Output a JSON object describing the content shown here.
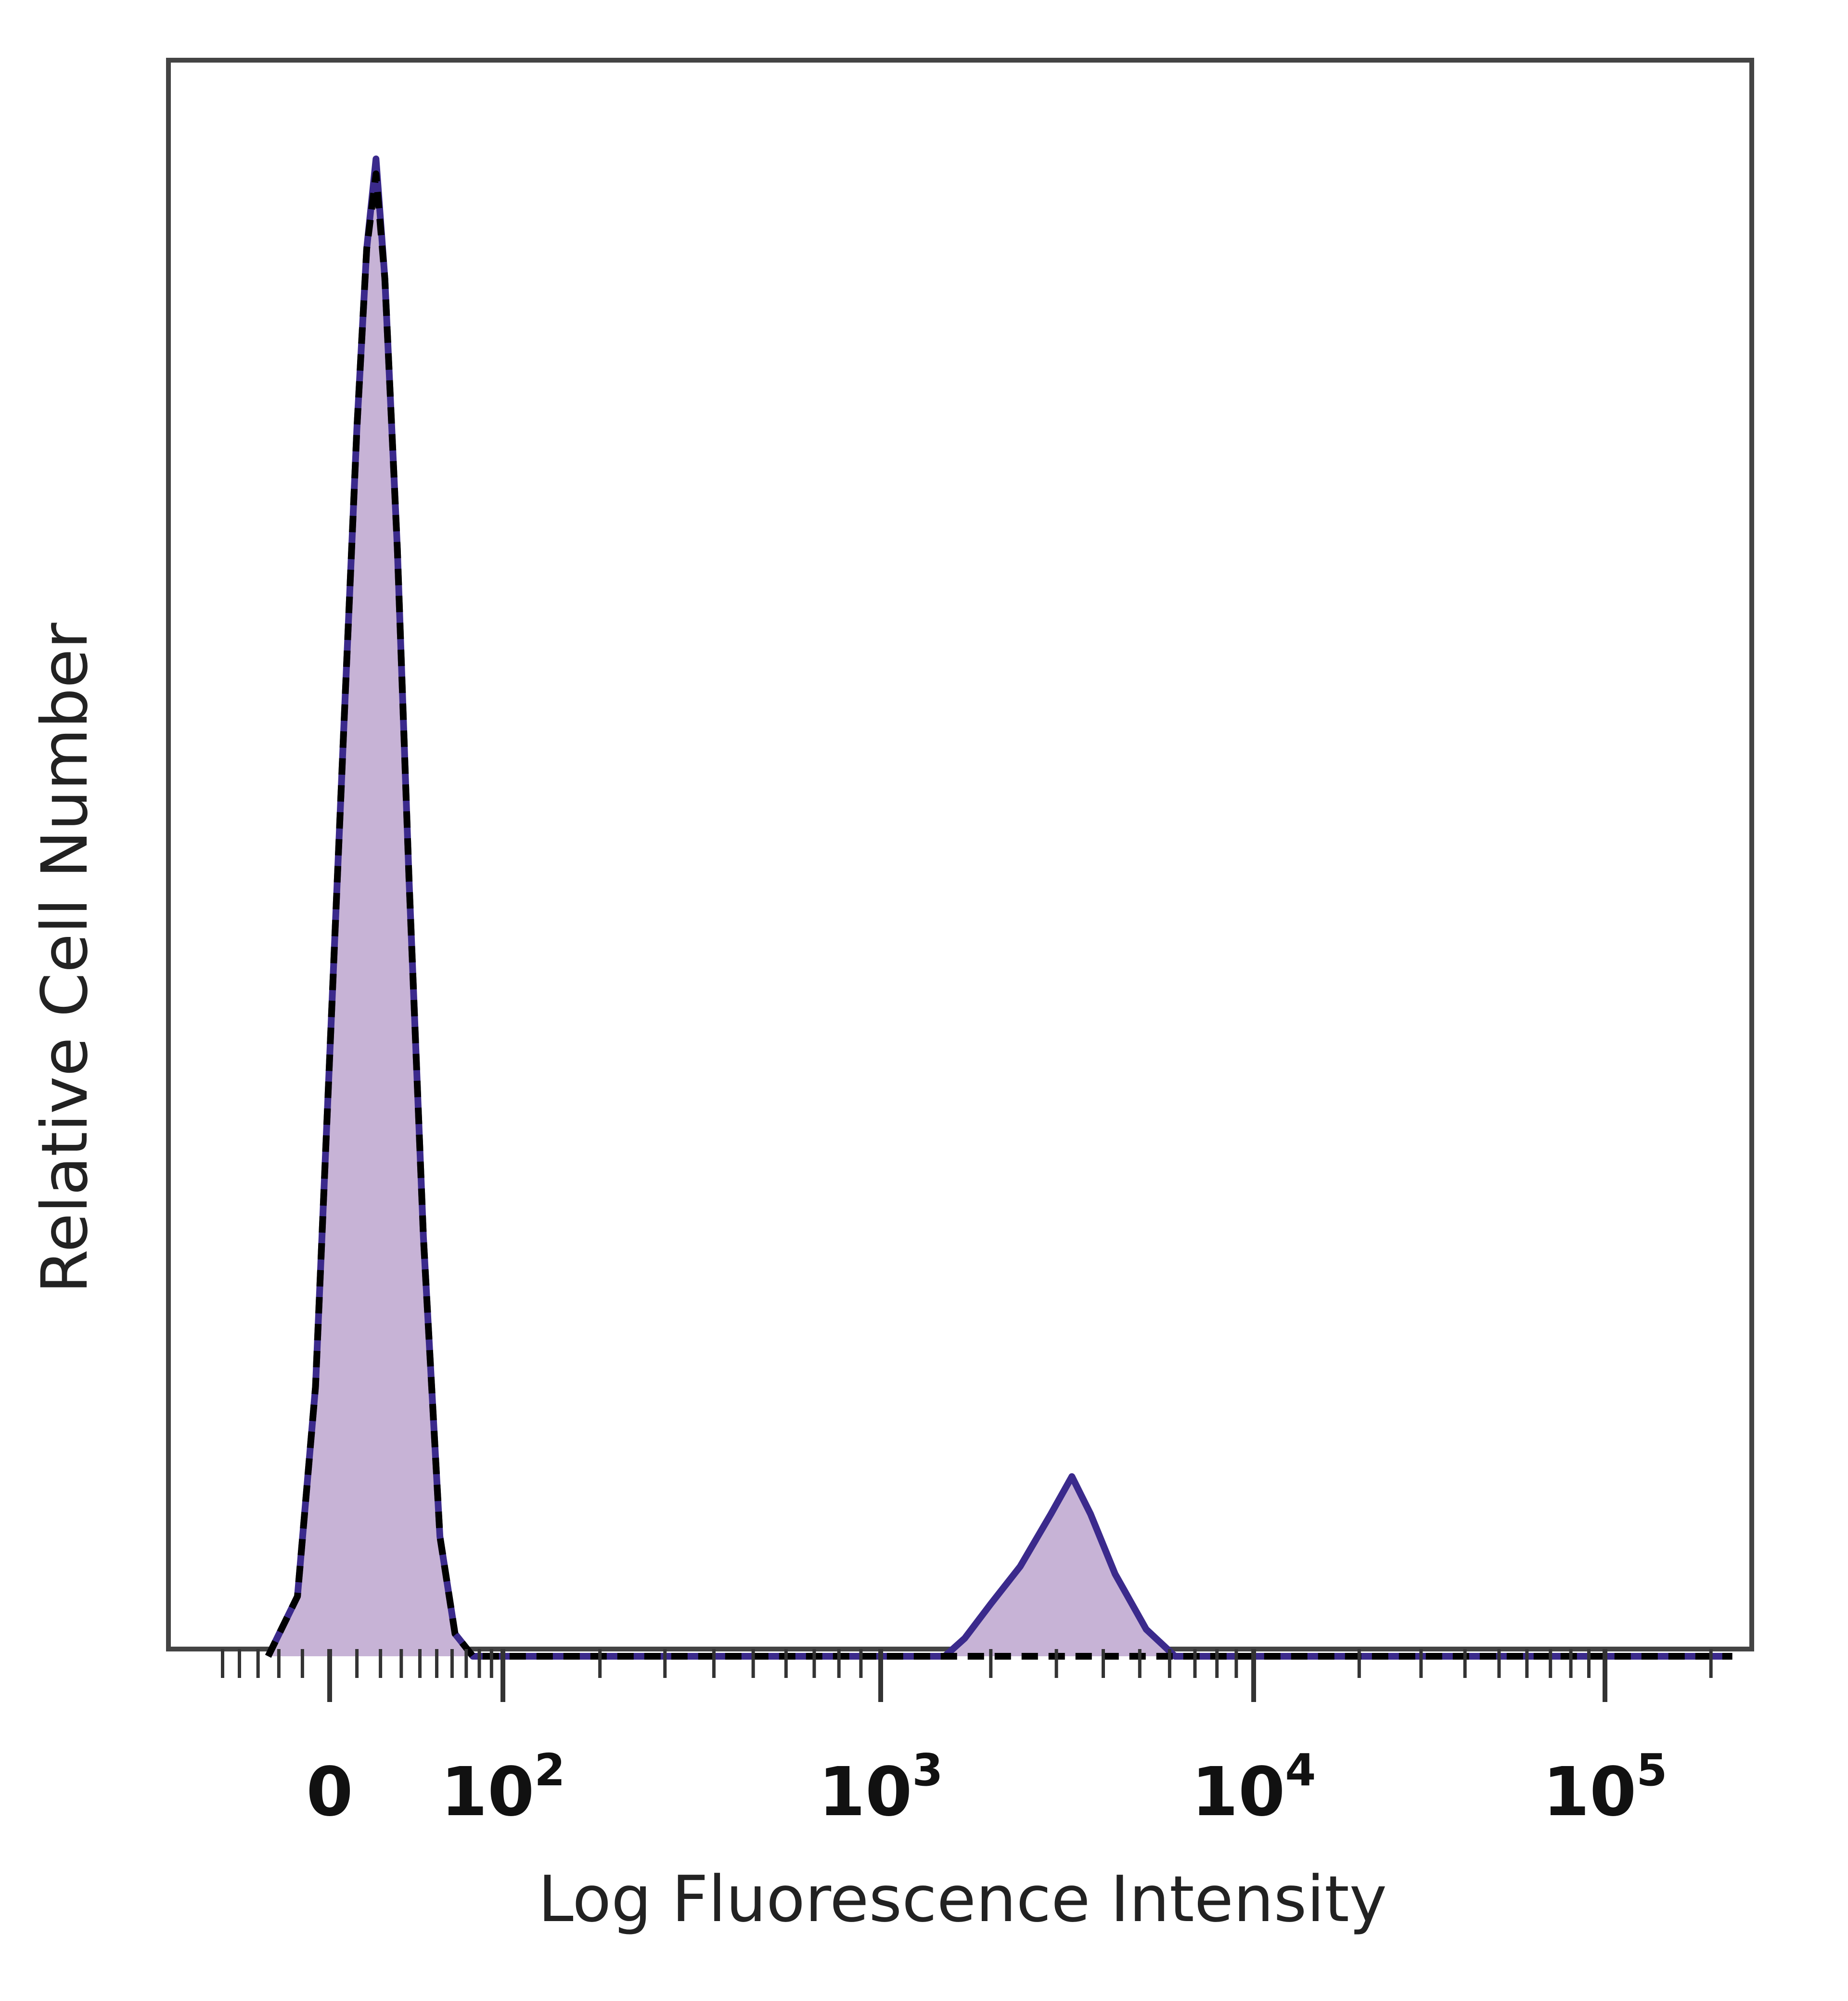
{
  "chart_data": {
    "type": "area",
    "xlabel": "Log Fluorescence Intensity",
    "ylabel": "Relative Cell Number",
    "x_scale": "biexponential",
    "x_ticks": [
      {
        "value": 0,
        "label": "0",
        "exp": ""
      },
      {
        "value": 100,
        "label": "10",
        "exp": "2"
      },
      {
        "value": 1000,
        "label": "10",
        "exp": "3"
      },
      {
        "value": 10000,
        "label": "10",
        "exp": "4"
      },
      {
        "value": 100000,
        "label": "10",
        "exp": "5"
      }
    ],
    "ylim": [
      0,
      1
    ],
    "grid": false,
    "series": [
      {
        "style": "filled-solid",
        "stroke": "#3b2a8c",
        "fill": "#c7b3d6",
        "points": [
          [
            -25,
            0
          ],
          [
            -12,
            0.04
          ],
          [
            -5,
            0.18
          ],
          [
            0,
            0.4
          ],
          [
            5,
            0.62
          ],
          [
            10,
            0.82
          ],
          [
            14,
            0.94
          ],
          [
            18,
            1.0
          ],
          [
            22,
            0.92
          ],
          [
            28,
            0.74
          ],
          [
            34,
            0.52
          ],
          [
            42,
            0.28
          ],
          [
            52,
            0.08
          ],
          [
            62,
            0.015
          ],
          [
            75,
            0
          ],
          [
            1500,
            0
          ],
          [
            1700,
            0.012
          ],
          [
            2000,
            0.035
          ],
          [
            2400,
            0.06
          ],
          [
            2900,
            0.095
          ],
          [
            3300,
            0.12
          ],
          [
            3700,
            0.095
          ],
          [
            4300,
            0.055
          ],
          [
            5200,
            0.018
          ],
          [
            6200,
            0
          ],
          [
            230000,
            0
          ]
        ]
      },
      {
        "style": "dashed",
        "stroke": "#000000",
        "points": [
          [
            -25,
            0
          ],
          [
            -12,
            0.04
          ],
          [
            -5,
            0.18
          ],
          [
            0,
            0.4
          ],
          [
            5,
            0.62
          ],
          [
            10,
            0.82
          ],
          [
            14,
            0.94
          ],
          [
            18,
            0.99
          ],
          [
            22,
            0.92
          ],
          [
            28,
            0.74
          ],
          [
            34,
            0.52
          ],
          [
            42,
            0.28
          ],
          [
            52,
            0.08
          ],
          [
            62,
            0.015
          ],
          [
            75,
            0
          ],
          [
            230000,
            0
          ]
        ]
      }
    ]
  }
}
